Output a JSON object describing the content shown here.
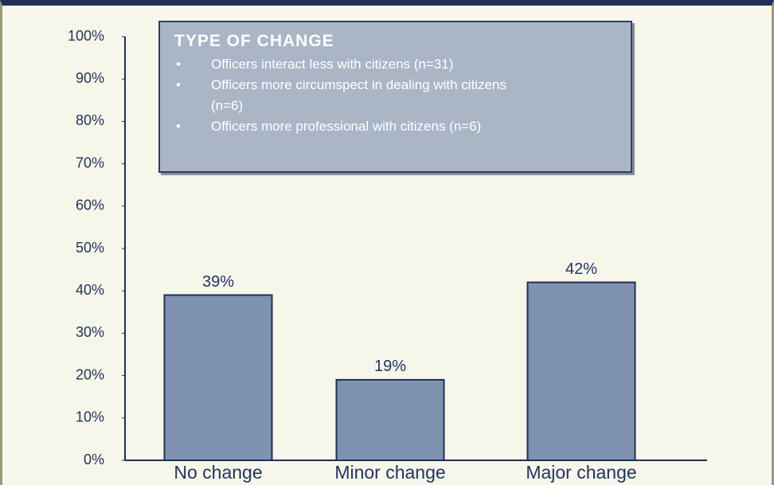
{
  "chart_data": {
    "type": "bar",
    "categories": [
      "No change",
      "Minor change",
      "Major change"
    ],
    "values": [
      39,
      19,
      42
    ],
    "value_labels": [
      "39%",
      "19%",
      "42%"
    ],
    "color": "#7f93b0",
    "ylim": [
      0,
      100
    ],
    "yticks": [
      {
        "value": 0,
        "label": "0%"
      },
      {
        "value": 10,
        "label": "10%"
      },
      {
        "value": 20,
        "label": "20%"
      },
      {
        "value": 30,
        "label": "30%"
      },
      {
        "value": 40,
        "label": "40%"
      },
      {
        "value": 50,
        "label": "50%"
      },
      {
        "value": 60,
        "label": "60%"
      },
      {
        "value": 70,
        "label": "70%"
      },
      {
        "value": 80,
        "label": "80%"
      },
      {
        "value": 90,
        "label": "90%"
      },
      {
        "value": 100,
        "label": "100%"
      }
    ],
    "annotation": {
      "title": "TYPE OF CHANGE",
      "items": [
        "Officers interact less with citizens (n=31)",
        "Officers more circumspect in dealing with citizens (n=6)",
        "Officers more professional with citizens (n=6)"
      ]
    }
  }
}
